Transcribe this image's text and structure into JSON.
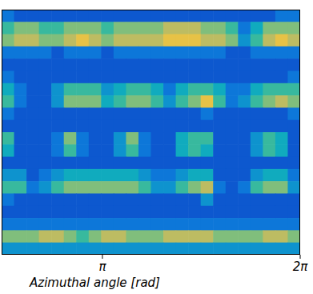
{
  "chart_data": {
    "type": "heatmap",
    "x_label": "Azimuthal angle [rad]",
    "xlim": [
      1.54,
      6.28319
    ],
    "xticks": [
      {
        "value": 3.14159,
        "label": "π"
      },
      {
        "value": 6.28319,
        "label": "2π"
      }
    ],
    "tick_labels": "x",
    "zlim": [
      0,
      10
    ],
    "cells": [
      [
        2,
        1,
        1,
        1,
        1,
        1,
        1,
        1,
        1,
        1,
        1,
        1,
        1,
        1,
        1,
        1,
        1,
        1,
        1,
        1,
        1,
        1,
        2,
        2
      ],
      [
        5,
        6,
        6,
        5,
        5,
        6,
        6,
        6,
        5,
        6,
        6,
        6,
        6,
        7,
        7,
        7,
        6,
        6,
        5,
        2,
        4,
        6,
        6,
        6
      ],
      [
        6,
        7,
        7,
        6,
        6,
        7,
        8,
        7,
        6,
        7,
        7,
        7,
        7,
        8,
        8,
        8,
        7,
        7,
        6,
        3,
        5,
        7,
        8,
        7
      ],
      [
        2,
        2,
        2,
        2,
        1,
        2,
        2,
        2,
        1,
        2,
        2,
        2,
        2,
        2,
        2,
        2,
        2,
        2,
        1,
        1,
        2,
        2,
        2,
        2
      ],
      [
        1,
        1,
        1,
        1,
        1,
        1,
        1,
        1,
        1,
        1,
        1,
        1,
        1,
        1,
        1,
        1,
        1,
        1,
        1,
        1,
        1,
        1,
        1,
        1
      ],
      [
        2,
        1,
        1,
        1,
        1,
        1,
        1,
        1,
        1,
        1,
        1,
        1,
        1,
        1,
        1,
        1,
        1,
        1,
        1,
        1,
        1,
        1,
        1,
        2
      ],
      [
        4,
        2,
        1,
        1,
        3,
        5,
        5,
        5,
        3,
        4,
        5,
        5,
        4,
        2,
        4,
        5,
        5,
        4,
        2,
        2,
        4,
        5,
        5,
        5
      ],
      [
        5,
        2,
        1,
        1,
        3,
        6,
        6,
        6,
        4,
        5,
        6,
        6,
        5,
        3,
        5,
        6,
        8,
        5,
        2,
        3,
        5,
        6,
        7,
        6
      ],
      [
        2,
        1,
        1,
        1,
        1,
        1,
        1,
        1,
        1,
        1,
        1,
        1,
        1,
        1,
        1,
        1,
        2,
        1,
        1,
        1,
        1,
        1,
        1,
        2
      ],
      [
        1,
        1,
        1,
        1,
        1,
        1,
        1,
        1,
        1,
        1,
        1,
        1,
        1,
        1,
        1,
        1,
        1,
        1,
        1,
        1,
        1,
        1,
        1,
        1
      ],
      [
        5,
        1,
        1,
        1,
        2,
        6,
        2,
        1,
        1,
        3,
        6,
        2,
        1,
        1,
        4,
        5,
        5,
        1,
        1,
        1,
        3,
        5,
        4,
        1
      ],
      [
        4,
        1,
        1,
        1,
        2,
        5,
        2,
        1,
        1,
        3,
        5,
        2,
        1,
        1,
        4,
        5,
        4,
        1,
        1,
        1,
        3,
        5,
        4,
        1
      ],
      [
        1,
        1,
        1,
        1,
        1,
        1,
        1,
        1,
        1,
        1,
        1,
        1,
        1,
        1,
        1,
        1,
        1,
        1,
        1,
        1,
        1,
        1,
        1,
        1
      ],
      [
        3,
        3,
        1,
        2,
        3,
        4,
        4,
        4,
        4,
        4,
        4,
        3,
        2,
        2,
        3,
        4,
        4,
        1,
        1,
        1,
        3,
        4,
        4,
        2
      ],
      [
        5,
        5,
        2,
        3,
        5,
        6,
        6,
        6,
        6,
        6,
        6,
        5,
        3,
        3,
        5,
        6,
        7,
        2,
        1,
        2,
        5,
        6,
        6,
        3
      ],
      [
        2,
        1,
        1,
        1,
        1,
        1,
        1,
        1,
        1,
        1,
        1,
        1,
        1,
        1,
        1,
        1,
        3,
        1,
        1,
        1,
        1,
        1,
        1,
        1
      ],
      [
        1,
        1,
        1,
        1,
        1,
        1,
        1,
        1,
        1,
        1,
        1,
        1,
        1,
        1,
        1,
        1,
        1,
        1,
        1,
        1,
        1,
        1,
        1,
        1
      ],
      [
        2,
        2,
        2,
        2,
        2,
        2,
        2,
        2,
        2,
        2,
        2,
        2,
        2,
        2,
        2,
        2,
        2,
        2,
        2,
        2,
        2,
        2,
        2,
        2
      ],
      [
        6,
        6,
        6,
        7,
        7,
        6,
        5,
        6,
        7,
        7,
        6,
        6,
        6,
        7,
        7,
        7,
        7,
        6,
        6,
        6,
        6,
        7,
        7,
        6
      ],
      [
        3,
        3,
        3,
        3,
        3,
        3,
        3,
        3,
        3,
        3,
        3,
        3,
        3,
        3,
        3,
        3,
        3,
        3,
        3,
        3,
        3,
        3,
        3,
        3
      ]
    ]
  }
}
